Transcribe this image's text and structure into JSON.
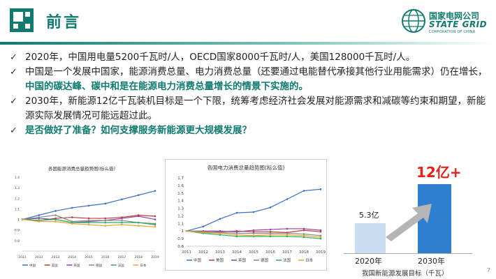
{
  "header": {
    "title": "前言",
    "brand_cn": "国家电网公司",
    "brand_en": "STATE GRID",
    "brand_sub": "CORPORATION OF CHINA"
  },
  "bullets": [
    {
      "text": "2020年，中国用电量5200千瓦时/人，OECD国家8000千瓦时/人，美国128000千瓦时/人。"
    },
    {
      "text_a": "中国是一个发展中国家，能源消费总量、电力消费总量（还要通过电能替代承接其他行业用能需求）仍在增长，",
      "highlight": "中国的碳达峰、碳中和是在能源电力消费总量增长的情景下实施的。"
    },
    {
      "text": "2030年，新能源12亿千瓦装机目标是一个下限，统筹考虑经济社会发展对能源需求和减碳等约束和期望，新能源实际发展情况可能远超过此。"
    },
    {
      "text": "是否做好了准备？如何支撑服务新能源更大规模发展？"
    }
  ],
  "colors": {
    "accent": "#0f7a6e",
    "highlight_red": "#e2231a",
    "bar_light": "#c9def2",
    "bar_dark": "#2f7fd0",
    "arrow_gray": "#b5b5b5"
  },
  "chart_data": [
    {
      "type": "line",
      "title": "各国能源消费总量趋势图(标么值)",
      "x": [
        "2011",
        "2012",
        "2013",
        "2014",
        "2015",
        "2016",
        "2017",
        "2018",
        "2019"
      ],
      "ylim": [
        0.7,
        1.4
      ],
      "yticks": [
        "1.4",
        "1.3",
        "1.2",
        "1.1",
        "1",
        "0.9",
        "0.8"
      ],
      "series": [
        {
          "name": "中国",
          "color": "#3a6fc4",
          "values": [
            1.0,
            1.04,
            1.08,
            1.11,
            1.13,
            1.15,
            1.19,
            1.23,
            1.27
          ]
        },
        {
          "name": "美国",
          "color": "#c0392b",
          "values": [
            1.0,
            0.99,
            1.01,
            1.02,
            1.01,
            1.01,
            1.02,
            1.04,
            1.03
          ]
        },
        {
          "name": "英国",
          "color": "#8e44ad",
          "values": [
            1.0,
            1.01,
            1.0,
            0.97,
            0.98,
            0.99,
            1.01,
            1.03,
            1.0
          ]
        },
        {
          "name": "德国",
          "color": "#7f8c8d",
          "values": [
            1.0,
            1.02,
            1.04,
            0.98,
            0.99,
            0.99,
            0.99,
            0.97,
            0.96
          ]
        },
        {
          "name": "法国",
          "color": "#27ae60",
          "values": [
            1.0,
            0.99,
            1.0,
            0.97,
            0.97,
            0.97,
            0.97,
            0.97,
            0.95
          ]
        },
        {
          "name": "日本",
          "color": "#e6a52e",
          "values": [
            1.0,
            0.98,
            0.98,
            0.96,
            0.95,
            0.94,
            0.95,
            0.94,
            0.93
          ]
        }
      ],
      "legend": [
        "中国",
        "美国",
        "英国",
        "德国",
        "法国",
        "日本"
      ]
    },
    {
      "type": "line",
      "title": "各国电力消费总量趋势图(标么值)",
      "x": [
        "2011",
        "2012",
        "2013",
        "2014",
        "2015",
        "2016",
        "2017",
        "2018",
        "2019"
      ],
      "ylim": [
        0.8,
        1.7
      ],
      "yticks": [
        "1.7",
        "1.6",
        "1.5",
        "1.4",
        "1.3",
        "1.2",
        "1.1",
        "1",
        "0.9",
        "0.8"
      ],
      "series": [
        {
          "name": "中国",
          "color": "#3a6fc4",
          "values": [
            1.0,
            1.06,
            1.16,
            1.24,
            1.25,
            1.31,
            1.42,
            1.53,
            1.55
          ]
        },
        {
          "name": "美国",
          "color": "#c0392b",
          "values": [
            1.0,
            0.98,
            0.99,
            1.0,
            0.99,
            0.99,
            0.98,
            1.01,
            0.99
          ]
        },
        {
          "name": "英国",
          "color": "#8e44ad",
          "values": [
            1.0,
            1.0,
            1.0,
            0.99,
            1.01,
            1.02,
            1.03,
            1.03,
            1.01
          ]
        },
        {
          "name": "德国",
          "color": "#7f8c8d",
          "values": [
            1.0,
            0.99,
            0.98,
            0.97,
            0.97,
            0.97,
            0.97,
            0.96,
            0.94
          ]
        },
        {
          "name": "法国",
          "color": "#27ae60",
          "values": [
            1.0,
            0.97,
            0.95,
            0.93,
            0.93,
            0.93,
            0.93,
            0.92,
            0.9
          ]
        },
        {
          "name": "日本",
          "color": "#e6a52e",
          "values": [
            1.0,
            0.98,
            0.97,
            0.95,
            0.94,
            0.95,
            0.95,
            0.94,
            0.92
          ]
        }
      ],
      "legend": [
        "中国",
        "美国",
        "英国",
        "德国",
        "法国",
        "日本"
      ]
    },
    {
      "type": "bar",
      "title": "我国新能源发展目标（千瓦）",
      "categories": [
        "2020年",
        "2030年"
      ],
      "values": [
        5.3,
        12
      ],
      "value_labels": [
        "5.3亿",
        "12亿+"
      ]
    }
  ],
  "page_number": "7"
}
